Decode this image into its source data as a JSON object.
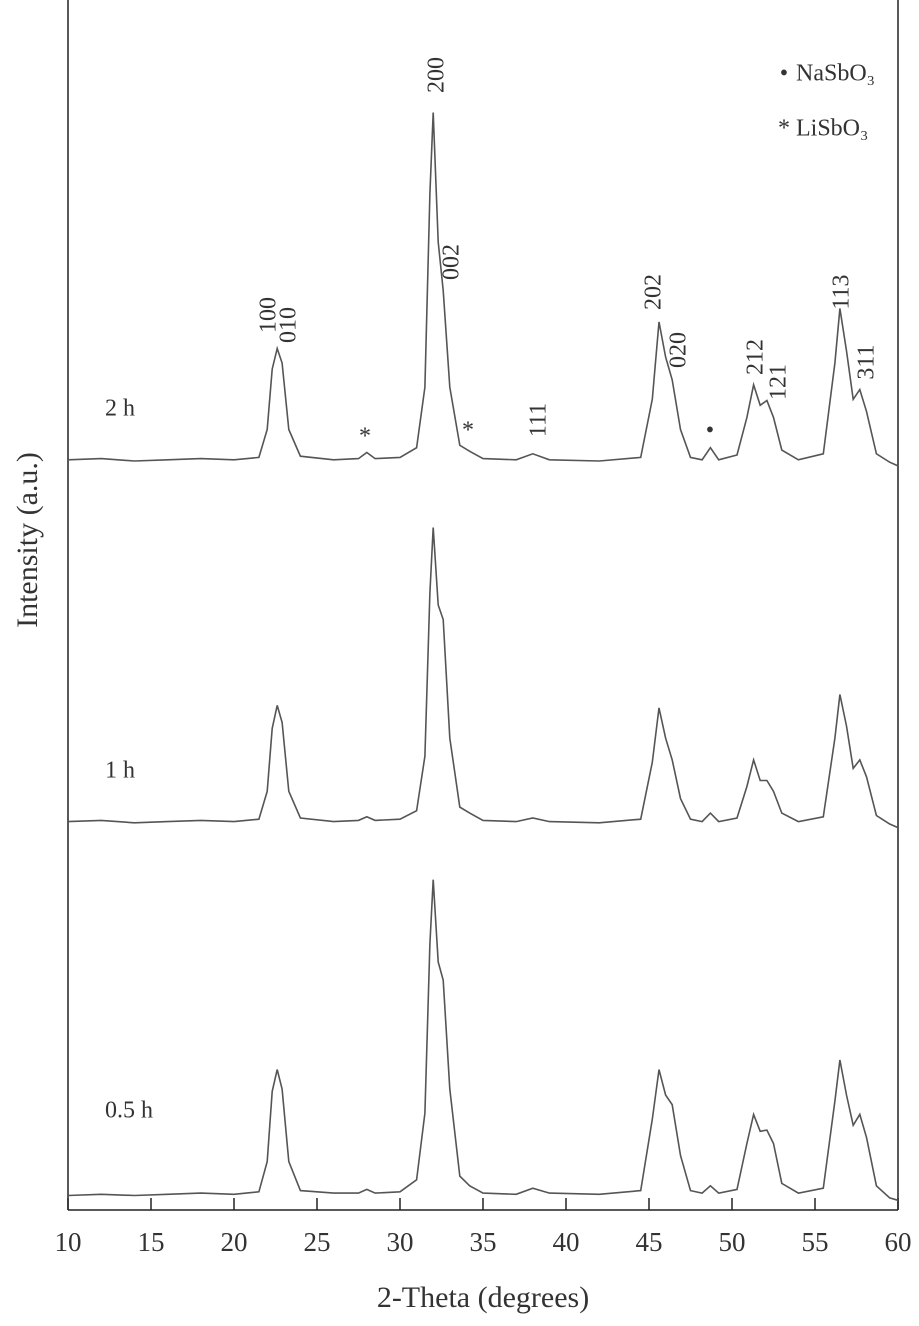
{
  "chart_data": {
    "type": "line",
    "x_label": "2-Theta (degrees)",
    "y_label": "Intensity (a.u.)",
    "xlim": [
      10,
      60
    ],
    "ylim": [
      0,
      100
    ],
    "xticks": [
      10,
      15,
      20,
      25,
      30,
      35,
      40,
      45,
      50,
      55,
      60
    ],
    "x": [
      10,
      12,
      14,
      16,
      18,
      20,
      21.5,
      22.0,
      22.3,
      22.6,
      22.9,
      23.3,
      24,
      26,
      27.5,
      28,
      28.5,
      30,
      31.0,
      31.5,
      31.8,
      32.0,
      32.3,
      32.6,
      33.0,
      33.6,
      34.2,
      35,
      37,
      38,
      39,
      42,
      44.5,
      45.2,
      45.6,
      46.0,
      46.4,
      46.9,
      47.5,
      48.2,
      48.7,
      49.2,
      50.3,
      50.9,
      51.3,
      51.7,
      52.1,
      52.5,
      53.0,
      54,
      55.5,
      56.2,
      56.5,
      56.9,
      57.3,
      57.7,
      58.1,
      58.7,
      59.5,
      60
    ],
    "series": [
      {
        "name": "2 h",
        "color": "#555555",
        "values": [
          62.0,
          62.1,
          61.9,
          62.0,
          62.1,
          62.0,
          62.2,
          64.5,
          69.5,
          71.2,
          70.0,
          64.5,
          62.3,
          62.0,
          62.1,
          62.6,
          62.1,
          62.2,
          63.0,
          68.0,
          84.0,
          90.7,
          80.0,
          76.0,
          68.0,
          63.2,
          62.7,
          62.1,
          62.0,
          62.5,
          62.0,
          61.9,
          62.2,
          67.0,
          73.4,
          70.5,
          68.6,
          64.5,
          62.2,
          62.0,
          63.0,
          62.0,
          62.4,
          65.5,
          68.2,
          66.5,
          66.9,
          65.5,
          62.8,
          62.0,
          62.5,
          70.0,
          74.5,
          71.0,
          67.0,
          67.8,
          66.0,
          62.5,
          61.8,
          61.5
        ]
      },
      {
        "name": "1 h",
        "color": "#555555",
        "values": [
          32.1,
          32.2,
          32.0,
          32.1,
          32.2,
          32.1,
          32.3,
          34.6,
          39.8,
          41.7,
          40.3,
          34.6,
          32.4,
          32.1,
          32.2,
          32.5,
          32.2,
          32.3,
          33.0,
          37.5,
          51.0,
          56.4,
          50.0,
          48.8,
          39.0,
          33.3,
          32.8,
          32.2,
          32.1,
          32.4,
          32.1,
          32.0,
          32.3,
          37.0,
          41.5,
          39.0,
          37.2,
          34.0,
          32.3,
          32.1,
          32.8,
          32.1,
          32.4,
          35.0,
          37.2,
          35.5,
          35.5,
          34.6,
          32.8,
          32.1,
          32.5,
          39.0,
          42.6,
          40.0,
          36.5,
          37.2,
          35.8,
          32.6,
          31.9,
          31.6
        ]
      },
      {
        "name": "0.5 h",
        "color": "#555555",
        "values": [
          1.2,
          1.3,
          1.2,
          1.3,
          1.4,
          1.3,
          1.5,
          4.0,
          9.8,
          11.6,
          10.0,
          4.0,
          1.6,
          1.4,
          1.4,
          1.7,
          1.4,
          1.5,
          2.5,
          8.0,
          22.0,
          27.3,
          20.5,
          19.0,
          10.0,
          2.8,
          2.0,
          1.4,
          1.3,
          1.8,
          1.4,
          1.3,
          1.6,
          7.5,
          11.6,
          9.5,
          8.7,
          4.5,
          1.6,
          1.4,
          2.0,
          1.4,
          1.7,
          5.5,
          7.9,
          6.5,
          6.6,
          5.5,
          2.2,
          1.4,
          1.8,
          9.0,
          12.4,
          9.5,
          7.0,
          7.9,
          6.0,
          2.0,
          1.0,
          0.8
        ]
      }
    ],
    "legend": [
      {
        "symbol": "•",
        "label": "NaSbO₃"
      },
      {
        "symbol": "*",
        "label": "LiSbO₃"
      }
    ],
    "annotations": [
      "100",
      "010",
      "200",
      "002",
      "111",
      "202",
      "020",
      "212",
      "121",
      "113",
      "311",
      "*",
      "*",
      "•"
    ]
  }
}
